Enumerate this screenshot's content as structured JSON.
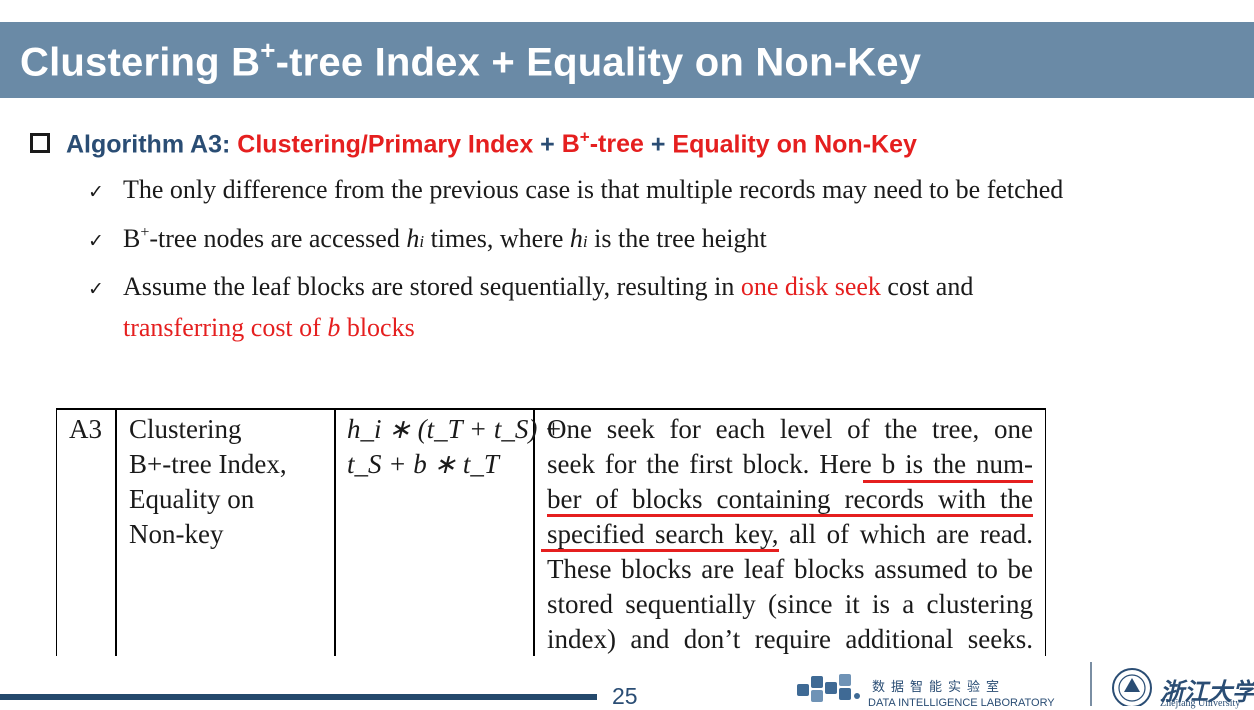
{
  "title": {
    "pre": "Clustering B",
    "sup": "+",
    "post": "-tree Index + Equality on Non-Key"
  },
  "algorithm": {
    "label": "Algorithm A3: ",
    "part1": "Clustering/Primary Index",
    "plus1": " + ",
    "part2_pre": "B",
    "part2_sup": "+",
    "part2_post": "-tree",
    "plus2": " + ",
    "part3": "Equality on Non-Key"
  },
  "bullets": {
    "b1": "The only difference from the previous case is that multiple records may need to be fetched",
    "b2_a": "B",
    "b2_sup": "+",
    "b2_b": "-tree nodes are accessed ",
    "b2_h1": "h",
    "b2_i1": "i",
    "b2_c": " times, where ",
    "b2_h2": "h",
    "b2_i2": "i",
    "b2_d": " is the tree height",
    "b3_a": "Assume the leaf blocks are stored sequentially, resulting in ",
    "b3_red": "one disk seek",
    "b3_b": " cost and",
    "b3_line2_a": "transferring cost of ",
    "b3_line2_b": "b",
    "b3_line2_c": " blocks"
  },
  "table": {
    "id": "A3",
    "name_lines": [
      "Clustering",
      "B+-tree Index,",
      "Equality on",
      "Non-key"
    ],
    "cost_line1": "h_i ∗ (t_T + t_S) +",
    "cost_line2": "t_S + b ∗ t_T",
    "reason_lines": [
      "One seek for each level of the tree, one",
      "seek for the first block. Here b is the num-",
      "ber of blocks containing records with the",
      "specified search key, all of which are read.",
      "These blocks are leaf blocks assumed to be",
      "stored sequentially (since it is a clustering",
      "index) and don’t require additional seeks."
    ]
  },
  "footer": {
    "page_number": "25",
    "lab_name_cn": "数据智能实验室",
    "lab_name_en": "DATA INTELLIGENCE LABORATORY",
    "university_cn": "浙江大学",
    "university_en": "Zhejiang University"
  },
  "colors": {
    "title_bar": "#6a8aa6",
    "accent_red": "#e51f1f",
    "accent_blue": "#2a4d74"
  }
}
